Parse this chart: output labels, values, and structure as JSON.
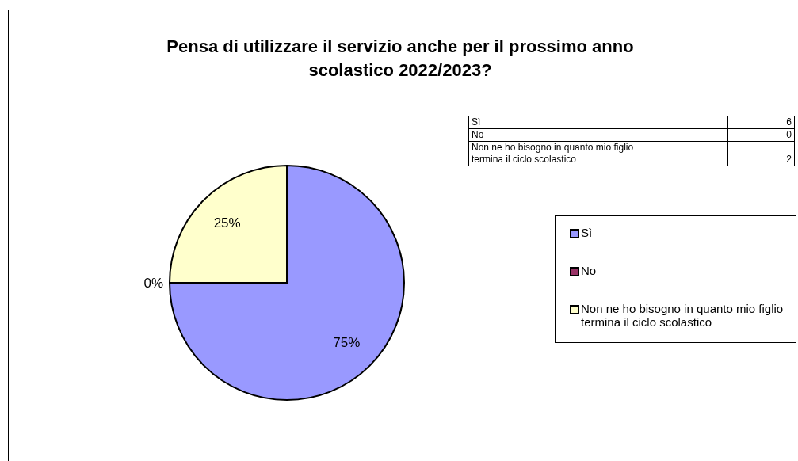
{
  "chart_data": {
    "type": "pie",
    "title": "Pensa di utilizzare il servizio anche per il prossimo anno scolastico 2022/2023?",
    "categories": [
      "Sì",
      "No",
      "Non ne ho bisogno in quanto mio figlio termina il ciclo scolastico"
    ],
    "values": [
      75,
      0,
      25
    ],
    "value_labels": [
      "75%",
      "0%",
      "25%"
    ],
    "colors": [
      "#9999ff",
      "#993366",
      "#ffffcc"
    ],
    "annotations": [
      "6",
      "0",
      "2"
    ],
    "legend": "right"
  }
}
